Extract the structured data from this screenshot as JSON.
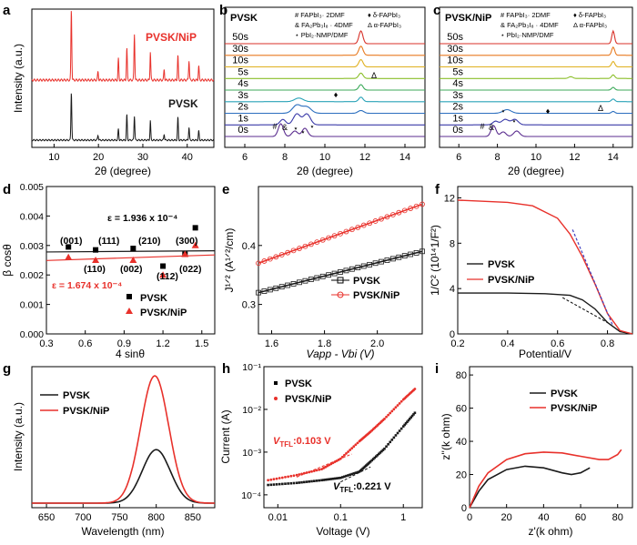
{
  "panels": {
    "a": {
      "letter": "a",
      "ylabel": "Intensity (a.u.)",
      "xlabel": "2θ (degree)",
      "xticks": [
        "10",
        "20",
        "30",
        "40"
      ],
      "series_labels": [
        "PVSK/NiP",
        "PVSK"
      ],
      "colors": [
        "#e8312b",
        "#1a1a1a"
      ],
      "chart_data": {
        "type": "line",
        "xlim": [
          5,
          46
        ],
        "peaks": [
          13.9,
          19.9,
          24.5,
          26.4,
          28.1,
          31.7,
          34.8,
          37.9,
          40.4,
          42.6
        ],
        "series": [
          {
            "name": "PVSK/NiP",
            "heights": [
              1.0,
              0.12,
              0.3,
              0.45,
              0.65,
              0.4,
              0.15,
              0.35,
              0.28,
              0.2
            ]
          },
          {
            "name": "PVSK",
            "heights": [
              0.95,
              0.1,
              0.22,
              0.5,
              0.48,
              0.38,
              0.12,
              0.45,
              0.25,
              0.18
            ]
          }
        ]
      }
    },
    "b": {
      "letter": "b",
      "title": "PVSK",
      "xlabel": "2θ (degree)",
      "xticks": [
        "6",
        "8",
        "10",
        "12",
        "14"
      ],
      "legend": [
        "# FAPbI₃· 2DMF",
        "& FA₂Pb₃I₈ · 4DMF",
        "⋆ PbI₂·NMP/DMF",
        "♦ δ-FAPbI₃",
        "Δ α-FAPbI₃"
      ],
      "times": [
        "0s",
        "1s",
        "2s",
        "3s",
        "4s",
        "5s",
        "10s",
        "30s",
        "50s"
      ],
      "marks": [
        "#",
        "&",
        "⋆",
        "⋆",
        "⋆",
        "♦",
        "Δ"
      ],
      "chart_data": {
        "type": "line",
        "xlim": [
          5,
          15
        ]
      }
    },
    "c": {
      "letter": "c",
      "title": "PVSK/NiP",
      "xlabel": "2θ (degree)",
      "xticks": [
        "6",
        "8",
        "10",
        "12",
        "14"
      ],
      "legend": [
        "# FAPbI₃· 2DMF",
        "& FA₂Pb₃I₈ · 4DMF",
        "⋆ PbI₂·NMP/DMF",
        "♦ δ-FAPbI₃",
        "Δ α-FAPbI₃"
      ],
      "times": [
        "0s",
        "1s",
        "2s",
        "3s",
        "4s",
        "5s",
        "10s",
        "30s",
        "50s"
      ],
      "marks": [
        "#",
        "&",
        "⋆",
        "⋆",
        "♦",
        "Δ"
      ],
      "chart_data": {
        "type": "line",
        "xlim": [
          5,
          15
        ]
      }
    },
    "d": {
      "letter": "d",
      "ylabel": "β cosθ",
      "xlabel": "4 sinθ",
      "xticks": [
        "0.3",
        "0.6",
        "0.9",
        "1.2",
        "1.5"
      ],
      "yticks": [
        "0.000",
        "0.001",
        "0.002",
        "0.003",
        "0.004",
        "0.005"
      ],
      "eps_black": "ε = 1.936 x 10⁻⁴",
      "eps_red": "ε = 1.674 x 10⁻⁴",
      "labels_top": [
        "(001)",
        "(111)",
        "(210)",
        "(300)"
      ],
      "labels_bottom": [
        "(110)",
        "(002)",
        "(112)",
        "(022)"
      ],
      "legend": [
        "PVSK",
        "PVSK/NiP"
      ],
      "chart_data": {
        "type": "scatter",
        "xlim": [
          0.3,
          1.6
        ],
        "ylim": [
          0.0,
          0.005
        ],
        "series": [
          {
            "name": "PVSK",
            "x": [
              0.47,
              0.68,
              0.97,
              1.2,
              1.37,
              1.45
            ],
            "y": [
              0.00295,
              0.00285,
              0.0029,
              0.0023,
              0.0027,
              0.0036
            ]
          },
          {
            "name": "PVSK/NiP",
            "x": [
              0.47,
              0.68,
              0.97,
              1.2,
              1.37,
              1.45
            ],
            "y": [
              0.0026,
              0.0025,
              0.0025,
              0.002,
              0.0027,
              0.003
            ]
          }
        ]
      }
    },
    "e": {
      "letter": "e",
      "ylabel": "J¹ᐟ² (A¹ᐟ²/cm)",
      "xlabel": "Vapp - Vbi (V)",
      "xticks": [
        "1.6",
        "1.8",
        "2.0"
      ],
      "yticks": [
        "0.3",
        "0.4"
      ],
      "legend": [
        "PVSK",
        "PVSK/NiP"
      ],
      "chart_data": {
        "type": "line",
        "xlim": [
          1.55,
          2.17
        ],
        "ylim": [
          0.25,
          0.5
        ],
        "series": [
          {
            "name": "PVSK",
            "x": [
              1.55,
              2.17
            ],
            "y": [
              0.32,
              0.39
            ]
          },
          {
            "name": "PVSK/NiP",
            "x": [
              1.55,
              2.17
            ],
            "y": [
              0.37,
              0.47
            ]
          }
        ]
      }
    },
    "f": {
      "letter": "f",
      "ylabel": "1/C² (10¹⁴1/F²)",
      "xlabel": "Potential/V",
      "xticks": [
        "0.2",
        "0.4",
        "0.6",
        "0.8"
      ],
      "yticks": [
        "0",
        "4",
        "8",
        "12"
      ],
      "legend": [
        "PVSK",
        "PVSK/NiP"
      ],
      "chart_data": {
        "type": "line",
        "xlim": [
          0.2,
          0.9
        ],
        "ylim": [
          0,
          13
        ],
        "series": [
          {
            "name": "PVSK",
            "x": [
              0.2,
              0.4,
              0.55,
              0.65,
              0.7,
              0.75,
              0.8,
              0.85,
              0.9
            ],
            "y": [
              3.6,
              3.6,
              3.55,
              3.4,
              3.0,
              2.2,
              1.0,
              0.2,
              0.0
            ]
          },
          {
            "name": "PVSK/NiP",
            "x": [
              0.2,
              0.3,
              0.4,
              0.5,
              0.6,
              0.65,
              0.7,
              0.75,
              0.8,
              0.85,
              0.9
            ],
            "y": [
              11.8,
              11.7,
              11.6,
              11.3,
              10.2,
              8.8,
              6.8,
              4.4,
              1.8,
              0.3,
              0.0
            ]
          }
        ]
      }
    },
    "g": {
      "letter": "g",
      "ylabel": "Intensity (a.u.)",
      "xlabel": "Wavelength (nm)",
      "xticks": [
        "650",
        "700",
        "750",
        "800",
        "850"
      ],
      "legend": [
        "PVSK",
        "PVSK/NiP"
      ],
      "chart_data": {
        "type": "line",
        "xlim": [
          630,
          880
        ],
        "series": [
          {
            "name": "PVSK",
            "center": 800,
            "peak": 0.42
          },
          {
            "name": "PVSK/NiP",
            "center": 798,
            "peak": 1.0
          }
        ]
      }
    },
    "h": {
      "letter": "h",
      "ylabel": "Current (A)",
      "xlabel": "Voltage (V)",
      "xticks": [
        "0.01",
        "0.1",
        "1"
      ],
      "yticks": [
        "10⁻⁴",
        "10⁻³",
        "10⁻²",
        "10⁻¹"
      ],
      "vtfl_red": "V_TFL:0.103 V",
      "vtfl_black": "V_TFL:0.221 V",
      "vtfl_red_prefix": "V",
      "vtfl_red_sub": "TFL",
      "vtfl_red_value": ":0.103 V",
      "vtfl_black_prefix": "V",
      "vtfl_black_sub": "TFL",
      "vtfl_black_value": ":0.221 V",
      "legend": [
        "PVSK",
        "PVSK/NiP"
      ],
      "chart_data": {
        "type": "scatter",
        "xscale": "log",
        "yscale": "log",
        "xlim": [
          0.006,
          2
        ],
        "ylim": [
          5e-05,
          0.1
        ],
        "series": [
          {
            "name": "PVSK",
            "x": [
              0.007,
              0.02,
              0.05,
              0.1,
              0.2,
              0.3,
              0.5,
              1.0,
              1.6
            ],
            "y": [
              0.00017,
              0.00019,
              0.00022,
              0.00025,
              0.00035,
              0.0006,
              0.0012,
              0.004,
              0.009
            ]
          },
          {
            "name": "PVSK/NiP",
            "x": [
              0.007,
              0.02,
              0.05,
              0.1,
              0.2,
              0.3,
              0.5,
              1.0,
              1.6
            ],
            "y": [
              0.00022,
              0.00029,
              0.0004,
              0.0007,
              0.0018,
              0.003,
              0.006,
              0.017,
              0.032
            ]
          }
        ]
      }
    },
    "i": {
      "letter": "i",
      "ylabel": "z''(k ohm)",
      "xlabel": "z'(k ohm)",
      "xticks": [
        "0",
        "20",
        "40",
        "60",
        "80"
      ],
      "yticks": [
        "0",
        "20",
        "40",
        "60",
        "80"
      ],
      "legend": [
        "PVSK",
        "PVSK/NiP"
      ],
      "chart_data": {
        "type": "line",
        "xlim": [
          0,
          88
        ],
        "ylim": [
          0,
          85
        ],
        "series": [
          {
            "name": "PVSK",
            "x": [
              0,
              5,
              10,
              20,
              30,
              40,
              50,
              55,
              60,
              65
            ],
            "y": [
              0,
              10,
              17,
              23,
              25,
              24,
              21,
              20,
              21,
              24
            ]
          },
          {
            "name": "PVSK/NiP",
            "x": [
              0,
              5,
              10,
              20,
              30,
              40,
              50,
              60,
              70,
              75,
              80,
              82
            ],
            "y": [
              0,
              13,
              21,
              29,
              32.5,
              33.5,
              33,
              31,
              29,
              29,
              32,
              35
            ]
          }
        ]
      }
    }
  },
  "colors": {
    "red": "#e8312b",
    "black": "#1a1a1a"
  }
}
